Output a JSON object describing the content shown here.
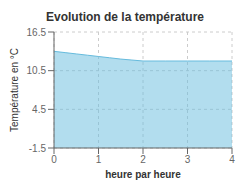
{
  "chart_data": {
    "type": "area",
    "title": "Evolution de la température",
    "xlabel": "heure par heure",
    "ylabel": "Température en °C",
    "x": [
      0,
      0.25,
      0.5,
      0.75,
      1.0,
      1.25,
      1.5,
      1.75,
      2.0,
      2.5,
      3.0,
      3.5,
      4.0
    ],
    "values": [
      13.5,
      13.3,
      13.1,
      12.9,
      12.7,
      12.5,
      12.3,
      12.15,
      12.0,
      12.0,
      12.0,
      12.0,
      12.0
    ],
    "color": "#66bbdd",
    "xlim": [
      0,
      4
    ],
    "ylim": [
      -1.5,
      16.5
    ],
    "xticks": [
      0,
      1,
      2,
      3,
      4
    ],
    "yticks": [
      -1.5,
      4.5,
      10.5,
      16.5
    ],
    "grid": true
  }
}
